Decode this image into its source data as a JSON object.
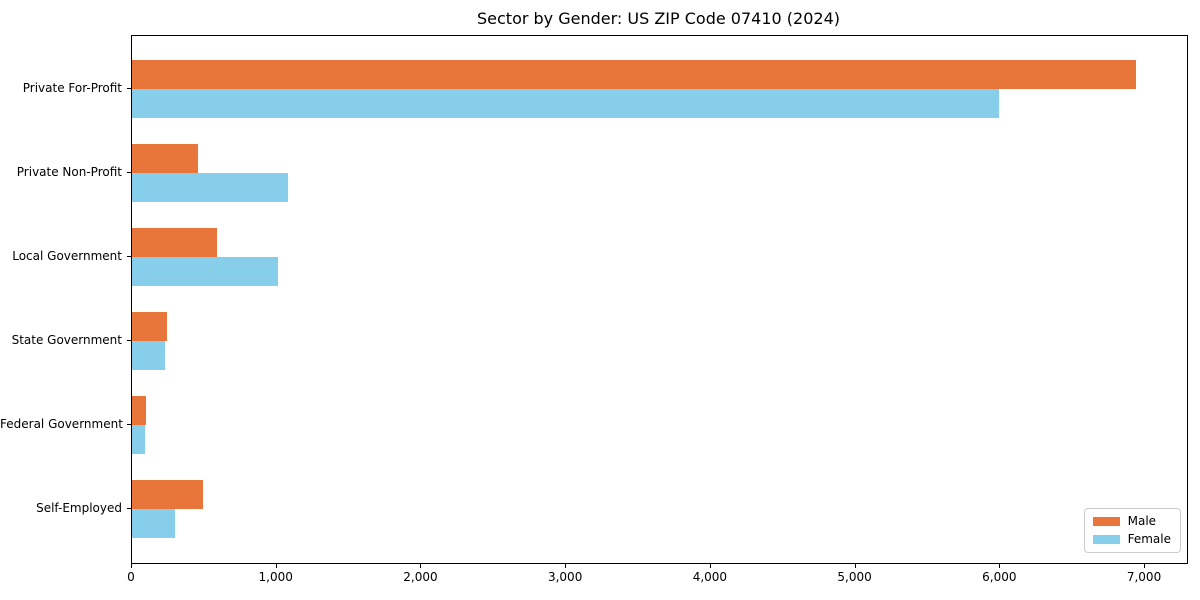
{
  "chart_data": {
    "type": "bar",
    "orientation": "horizontal",
    "title": "Sector by Gender: US ZIP Code 07410 (2024)",
    "xlabel": "",
    "ylabel": "",
    "categories": [
      "Private For-Profit",
      "Private Non-Profit",
      "Local Government",
      "State Government",
      "Federal Government",
      "Self-Employed"
    ],
    "series": [
      {
        "name": "Male",
        "color": "#e8763b",
        "values": [
          6940,
          455,
          590,
          240,
          95,
          490
        ]
      },
      {
        "name": "Female",
        "color": "#87ceeb",
        "values": [
          5990,
          1080,
          1010,
          225,
          90,
          295
        ]
      }
    ],
    "xlim": [
      0,
      7290
    ],
    "xticks": [
      0,
      1000,
      2000,
      3000,
      4000,
      5000,
      6000,
      7000
    ],
    "xtick_labels": [
      "0",
      "1,000",
      "2,000",
      "3,000",
      "4,000",
      "5,000",
      "6,000",
      "7,000"
    ],
    "grid": false,
    "legend": {
      "position": "lower right",
      "entries": [
        "Male",
        "Female"
      ]
    },
    "colors": {
      "male": "#e8763b",
      "female": "#87ceeb",
      "spine": "#000000",
      "legend_border": "#cccccc",
      "background": "#ffffff"
    }
  }
}
